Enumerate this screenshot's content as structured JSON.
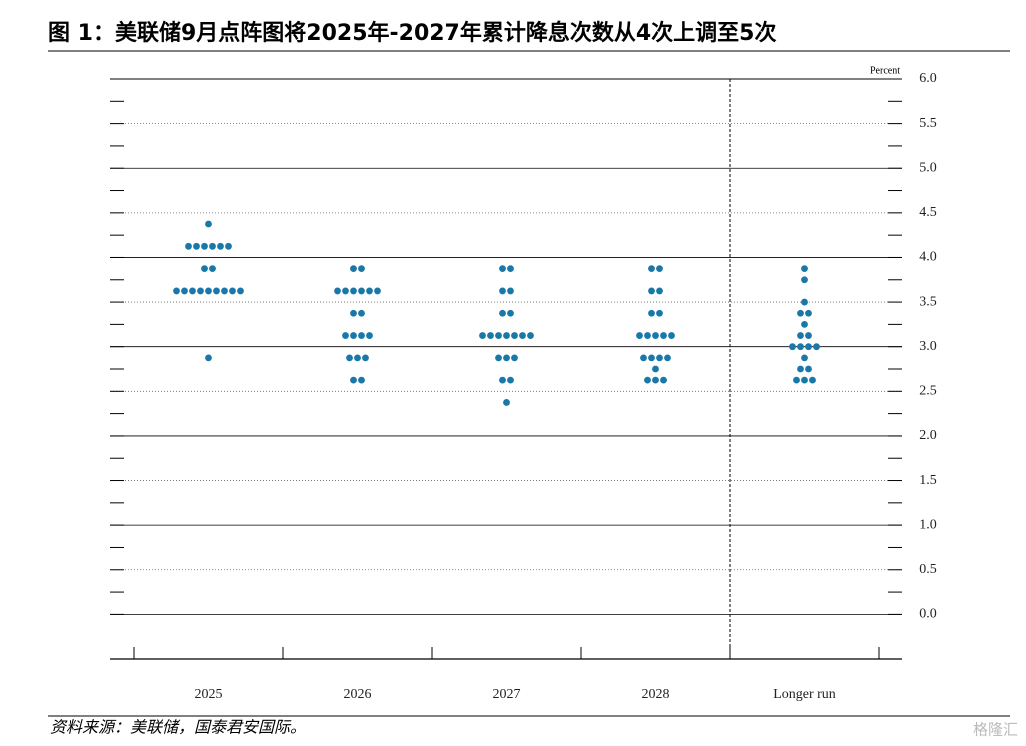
{
  "chart_data": {
    "type": "dot_plot",
    "title": "图 1：美联储9月点阵图将2025年-2027年累计降息次数从4次上调至5次",
    "y_axis_label": "Percent",
    "source": "资料来源：美联储，国泰君安国际。",
    "watermark": "格隆汇",
    "color": "#1a78a8",
    "ylim": [
      -0.5,
      6.0
    ],
    "yticks": [
      {
        "value": 0,
        "label": "0.0"
      },
      0.5,
      {
        "value": 1,
        "label": "1.0"
      },
      1.5,
      {
        "value": 2,
        "label": "2.0"
      },
      2.5,
      {
        "value": 3,
        "label": "3.0"
      },
      3.5,
      {
        "value": 4,
        "label": "4.0"
      },
      4.5,
      {
        "value": 5,
        "label": "5.0"
      },
      5.5,
      {
        "value": 6,
        "label": "6.0"
      }
    ],
    "categories": [
      "2025",
      "2026",
      "2027",
      "2028",
      "Longer run"
    ],
    "groups": [
      {
        "levels": [
          {
            "rate": 4.375,
            "count": 1
          },
          {
            "rate": 4.125,
            "count": 6
          },
          {
            "rate": 3.875,
            "count": 2
          },
          {
            "rate": 3.625,
            "count": 9
          },
          {
            "rate": 2.875,
            "count": 1
          }
        ]
      },
      {
        "levels": [
          {
            "rate": 3.875,
            "count": 2
          },
          {
            "rate": 3.625,
            "count": 6
          },
          {
            "rate": 3.375,
            "count": 2
          },
          {
            "rate": 3.125,
            "count": 4
          },
          {
            "rate": 2.875,
            "count": 3
          },
          {
            "rate": 2.625,
            "count": 2
          }
        ]
      },
      {
        "levels": [
          {
            "rate": 3.875,
            "count": 2
          },
          {
            "rate": 3.625,
            "count": 2
          },
          {
            "rate": 3.375,
            "count": 2
          },
          {
            "rate": 3.125,
            "count": 7
          },
          {
            "rate": 2.875,
            "count": 3
          },
          {
            "rate": 2.625,
            "count": 2
          },
          {
            "rate": 2.375,
            "count": 1
          }
        ]
      },
      {
        "levels": [
          {
            "rate": 3.875,
            "count": 2
          },
          {
            "rate": 3.625,
            "count": 2
          },
          {
            "rate": 3.375,
            "count": 2
          },
          {
            "rate": 3.125,
            "count": 5
          },
          {
            "rate": 2.875,
            "count": 4
          },
          {
            "rate": 2.75,
            "count": 1
          },
          {
            "rate": 2.625,
            "count": 3
          }
        ]
      },
      {
        "levels": [
          {
            "rate": 3.875,
            "count": 1
          },
          {
            "rate": 3.75,
            "count": 1
          },
          {
            "rate": 3.5,
            "count": 1
          },
          {
            "rate": 3.375,
            "count": 2
          },
          {
            "rate": 3.25,
            "count": 1
          },
          {
            "rate": 3.125,
            "count": 2
          },
          {
            "rate": 3.0,
            "count": 4
          },
          {
            "rate": 2.875,
            "count": 1
          },
          {
            "rate": 2.75,
            "count": 2
          },
          {
            "rate": 2.625,
            "count": 3
          }
        ]
      }
    ]
  }
}
